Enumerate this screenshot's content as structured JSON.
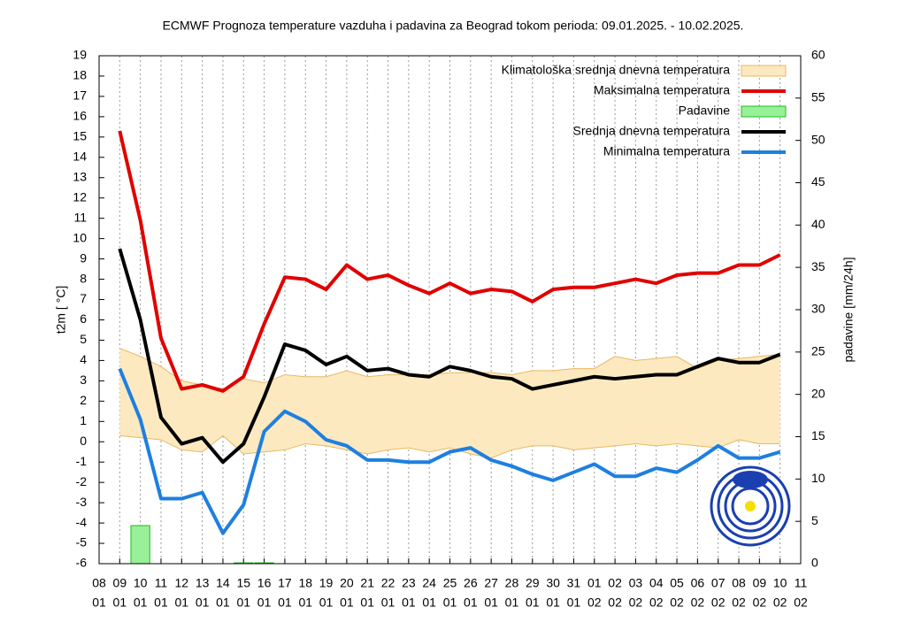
{
  "chart_data": {
    "type": "line",
    "title": "ECMWF Prognoza temperature vazduha i padavina za Beograd tokom perioda: 09.01.2025. - 10.02.2025.",
    "y_label": "t2m [ °C]",
    "y2_label": "padavine [mm/24h]",
    "categories": [
      [
        "08",
        "01"
      ],
      [
        "09",
        "01"
      ],
      [
        "10",
        "01"
      ],
      [
        "11",
        "01"
      ],
      [
        "12",
        "01"
      ],
      [
        "13",
        "01"
      ],
      [
        "14",
        "01"
      ],
      [
        "15",
        "01"
      ],
      [
        "16",
        "01"
      ],
      [
        "17",
        "01"
      ],
      [
        "18",
        "01"
      ],
      [
        "19",
        "01"
      ],
      [
        "20",
        "01"
      ],
      [
        "21",
        "01"
      ],
      [
        "22",
        "01"
      ],
      [
        "23",
        "01"
      ],
      [
        "24",
        "01"
      ],
      [
        "25",
        "01"
      ],
      [
        "26",
        "01"
      ],
      [
        "27",
        "01"
      ],
      [
        "28",
        "01"
      ],
      [
        "29",
        "01"
      ],
      [
        "30",
        "01"
      ],
      [
        "31",
        "01"
      ],
      [
        "01",
        "02"
      ],
      [
        "02",
        "02"
      ],
      [
        "03",
        "02"
      ],
      [
        "04",
        "02"
      ],
      [
        "05",
        "02"
      ],
      [
        "06",
        "02"
      ],
      [
        "07",
        "02"
      ],
      [
        "08",
        "02"
      ],
      [
        "09",
        "02"
      ],
      [
        "10",
        "02"
      ],
      [
        "11",
        "02"
      ]
    ],
    "ylim": [
      -6,
      19
    ],
    "yticks": [
      -6,
      -5,
      -4,
      -3,
      -2,
      -1,
      0,
      1,
      2,
      3,
      4,
      5,
      6,
      7,
      8,
      9,
      10,
      11,
      12,
      13,
      14,
      15,
      16,
      17,
      18,
      19
    ],
    "y2lim": [
      0,
      60
    ],
    "y2ticks": [
      0,
      5,
      10,
      15,
      20,
      25,
      30,
      35,
      40,
      45,
      50,
      55,
      60
    ],
    "grid": true,
    "series": [
      {
        "name": "Klimatološka srednja dnevna temperatura",
        "kind": "band",
        "color": "#fde9c0",
        "edge_color": "#e8b860",
        "high": [
          null,
          4.6,
          4.2,
          3.7,
          3.0,
          2.8,
          2.6,
          3.1,
          2.9,
          3.3,
          3.2,
          3.2,
          3.5,
          3.2,
          3.3,
          3.3,
          3.3,
          3.4,
          3.4,
          3.4,
          3.3,
          3.5,
          3.5,
          3.6,
          3.6,
          4.2,
          4.0,
          4.1,
          4.2,
          3.6,
          4.0,
          4.1,
          4.2,
          4.3,
          null
        ],
        "low": [
          null,
          0.3,
          0.2,
          0.1,
          -0.4,
          -0.5,
          0.3,
          -0.6,
          -0.5,
          -0.4,
          -0.1,
          -0.2,
          -0.4,
          -0.6,
          -0.4,
          -0.3,
          -0.5,
          -0.3,
          -0.6,
          -0.8,
          -0.4,
          -0.2,
          -0.2,
          -0.4,
          -0.3,
          -0.2,
          -0.1,
          -0.2,
          -0.1,
          -0.2,
          -0.3,
          0.1,
          -0.1,
          -0.1,
          null
        ]
      },
      {
        "name": "Maksimalna temperatura",
        "kind": "line",
        "color": "#e00000",
        "values": [
          null,
          15.3,
          10.9,
          5.1,
          2.6,
          2.8,
          2.5,
          3.2,
          5.8,
          8.1,
          8.0,
          7.5,
          8.7,
          8.0,
          8.2,
          7.7,
          7.3,
          7.8,
          7.3,
          7.5,
          7.4,
          6.9,
          7.5,
          7.6,
          7.6,
          7.8,
          8.0,
          7.8,
          8.2,
          8.3,
          8.3,
          8.7,
          8.7,
          9.2,
          null
        ]
      },
      {
        "name": "Padavine",
        "kind": "bar",
        "axis": "y2",
        "color": "#98f098",
        "edge_color": "#22bb22",
        "values": [
          null,
          0,
          4.5,
          0,
          0,
          0,
          0,
          0.1,
          0.1,
          0,
          0,
          0,
          0,
          0,
          0,
          0,
          0,
          0,
          0,
          0,
          0,
          0,
          0,
          0,
          0,
          0,
          0,
          0,
          0,
          0,
          0,
          0,
          0,
          0,
          null
        ]
      },
      {
        "name": "Srednja dnevna temperatura",
        "kind": "line",
        "color": "#000000",
        "values": [
          null,
          9.5,
          6.0,
          1.2,
          -0.1,
          0.2,
          -1.0,
          -0.1,
          2.2,
          4.8,
          4.5,
          3.8,
          4.2,
          3.5,
          3.6,
          3.3,
          3.2,
          3.7,
          3.5,
          3.2,
          3.1,
          2.6,
          2.8,
          3.0,
          3.2,
          3.1,
          3.2,
          3.3,
          3.3,
          3.7,
          4.1,
          3.9,
          3.9,
          4.3,
          null
        ]
      },
      {
        "name": "Minimalna temperatura",
        "kind": "line",
        "color": "#1e7fe0",
        "values": [
          null,
          3.6,
          1.1,
          -2.8,
          -2.8,
          -2.5,
          -4.5,
          -3.1,
          0.5,
          1.5,
          1.0,
          0.1,
          -0.2,
          -0.9,
          -0.9,
          -1.0,
          -1.0,
          -0.5,
          -0.3,
          -0.9,
          -1.2,
          -1.6,
          -1.9,
          -1.5,
          -1.1,
          -1.7,
          -1.7,
          -1.3,
          -1.5,
          -0.9,
          -0.2,
          -0.8,
          -0.8,
          -0.5,
          null
        ]
      }
    ]
  }
}
